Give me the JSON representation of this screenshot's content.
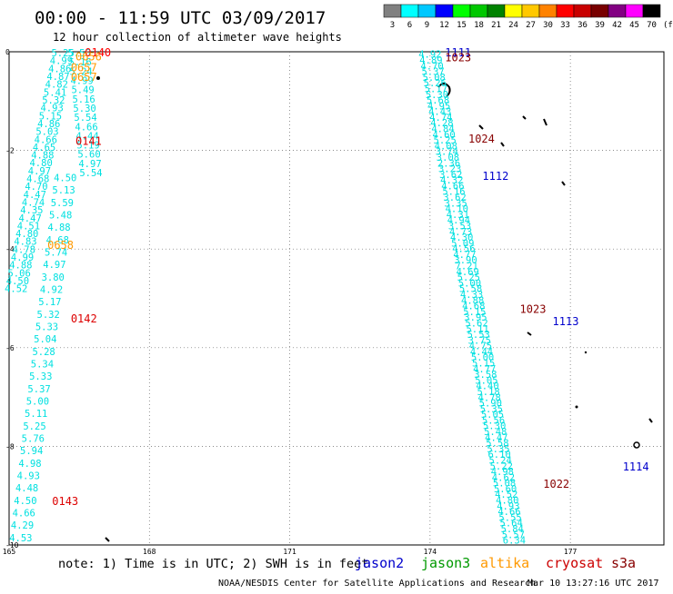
{
  "header": {
    "title": "00:00 - 11:59 UTC 03/09/2017",
    "subtitle": "12 hour collection of altimeter wave heights"
  },
  "colorbar": {
    "unit_label": "(ft)",
    "labels": [
      "3",
      "6",
      "9",
      "12",
      "15",
      "18",
      "21",
      "24",
      "27",
      "30",
      "33",
      "36",
      "39",
      "42",
      "45",
      "70"
    ],
    "colors": [
      "#808080",
      "#00ffff",
      "#00c8ff",
      "#0000ff",
      "#00ff00",
      "#00c800",
      "#008200",
      "#ffff00",
      "#ffc800",
      "#ff8200",
      "#ff0000",
      "#c80000",
      "#780000",
      "#820082",
      "#ff00ff",
      "#000000"
    ]
  },
  "footer": {
    "note": "note: 1) Time is in UTC; 2) SWH is in feet",
    "credit": "NOAA/NESDIS Center for Satellite Applications and Research",
    "generated": "Mar 10 13:27:16 UTC 2017"
  },
  "legend": [
    {
      "name": "jason2",
      "color": "#0000cc"
    },
    {
      "name": "jason3",
      "color": "#009900"
    },
    {
      "name": "altika",
      "color": "#ff9900"
    },
    {
      "name": "cryosat",
      "color": "#cc0000"
    },
    {
      "name": "s3a",
      "color": "#880000"
    }
  ],
  "chart_data": {
    "type": "scatter",
    "xlim": [
      165,
      179
    ],
    "ylim": [
      -10,
      0
    ],
    "x_ticks": [
      165,
      168,
      171,
      174,
      177
    ],
    "x_tick_labels": [
      "165",
      "168",
      "171",
      "174",
      "177"
    ],
    "y_ticks": [
      0,
      -2,
      -4,
      -6,
      -8,
      -10
    ],
    "y_tick_labels": [
      "0",
      "-2",
      "-4",
      "-6",
      "-8",
      "-10"
    ],
    "grid": true,
    "value_color": "#00e0e0",
    "time_labels": [
      {
        "text": "0140",
        "x": 166.9,
        "y": 0.0,
        "color": "#ff0000"
      },
      {
        "text": "0656",
        "x": 166.7,
        "y": -0.08,
        "color": "#ff9900"
      },
      {
        "text": "0657",
        "x": 166.6,
        "y": -0.3,
        "color": "#ff9900"
      },
      {
        "text": "0657",
        "x": 166.6,
        "y": -0.5,
        "color": "#ff9900"
      },
      {
        "text": "0141",
        "x": 166.7,
        "y": -1.8,
        "color": "#dd0000"
      },
      {
        "text": "0658",
        "x": 166.1,
        "y": -3.9,
        "color": "#ff9900"
      },
      {
        "text": "0142",
        "x": 166.6,
        "y": -5.4,
        "color": "#dd0000"
      },
      {
        "text": "0143",
        "x": 166.2,
        "y": -9.1,
        "color": "#dd0000"
      },
      {
        "text": "1111",
        "x": 174.6,
        "y": 0.0,
        "color": "#0000cc"
      },
      {
        "text": "1023",
        "x": 174.6,
        "y": -0.1,
        "color": "#880000"
      },
      {
        "text": "1024",
        "x": 175.1,
        "y": -1.75,
        "color": "#880000"
      },
      {
        "text": "1112",
        "x": 175.4,
        "y": -2.5,
        "color": "#0000cc"
      },
      {
        "text": "1023",
        "x": 176.2,
        "y": -5.2,
        "color": "#880000"
      },
      {
        "text": "1113",
        "x": 176.9,
        "y": -5.45,
        "color": "#0000cc"
      },
      {
        "text": "1114",
        "x": 178.4,
        "y": -8.4,
        "color": "#0000cc"
      },
      {
        "text": "1022",
        "x": 176.7,
        "y": -8.75,
        "color": "#880000"
      }
    ],
    "swh_tracks": [
      {
        "name": "track-a",
        "x_start": 166.15,
        "x_end": 165.15,
        "y_start": -0.02,
        "y_end": -4.8,
        "values": [
          "5.25",
          "4.99",
          "4.86",
          "4.87",
          "4.82",
          "5.41",
          "5.32",
          "4.93",
          "5.15",
          "4.86",
          "5.03",
          "4.66",
          "4.65",
          "4.88",
          "4.80",
          "4.97",
          "4.68",
          "4.70",
          "4.47",
          "4.74",
          "4.35",
          "4.47",
          "4.51",
          "4.80",
          "4.83",
          "4.78",
          "4.99",
          "4.88",
          "5.06",
          "4.50",
          "4.52"
        ]
      },
      {
        "name": "track-b",
        "x_start": 166.5,
        "x_end": 166.75,
        "y_start": -0.02,
        "y_end": -2.45,
        "values": [
          "5.55",
          "5.16",
          "5.24",
          "4.99",
          "5.49",
          "5.16",
          "5.30",
          "5.54",
          "4.66",
          "4.44",
          "5.19",
          "5.60",
          "4.97",
          "5.54"
        ]
      },
      {
        "name": "track-c",
        "x_start": 166.2,
        "x_end": 165.25,
        "y_start": -2.55,
        "y_end": -9.85,
        "values": [
          "4.50",
          "5.13",
          "5.59",
          "5.48",
          "4.88",
          "4.68",
          "5.74",
          "4.97",
          "3.80",
          "4.92",
          "5.17",
          "5.32",
          "5.33",
          "5.04",
          "5.28",
          "5.34",
          "5.33",
          "5.37",
          "5.00",
          "5.11",
          "5.25",
          "5.76",
          "5.94",
          "4.98",
          "4.93",
          "4.48",
          "4.50",
          "4.66",
          "4.29",
          "4.53"
        ]
      },
      {
        "name": "track-d",
        "x_start": 174.0,
        "x_end": 175.8,
        "y_start": -0.05,
        "y_end": -9.9,
        "values": [
          "4.92",
          "4.89",
          "4.70",
          "5.37",
          "5.08",
          "5.26",
          "5.17",
          "5.30",
          "5.68",
          "4.95",
          "4.43",
          "4.74",
          "4.28",
          "4.84",
          "4.60",
          "5.25",
          "4.08",
          "3.74",
          "3.08",
          "2.36",
          "3.23",
          "3.62",
          "4.32",
          "4.66",
          "5.16",
          "3.62",
          "3.35",
          "4.10",
          "4.31",
          "4.94",
          "3.53",
          "4.73",
          "4.30",
          "5.09",
          "4.56",
          "4.77",
          "3.90",
          "7.21",
          "4.69",
          "5.25",
          "5.00",
          "5.58",
          "4.33",
          "4.88",
          "4.68",
          "5.15",
          "3.95",
          "5.62",
          "5.11",
          "5.53",
          "3.75",
          "4.75",
          "4.44",
          "5.00",
          "5.15",
          "4.77",
          "3.58",
          "5.05",
          "4.40",
          "5.18",
          "4.78",
          "5.90",
          "5.35",
          "5.05",
          "5.56",
          "5.30",
          "5.48",
          "4.47",
          "5.58",
          "5.35",
          "6.10",
          "5.24",
          "5.22",
          "4.98",
          "4.62",
          "5.08",
          "5.60",
          "4.52",
          "4.80",
          "4.93",
          "4.66",
          "5.55",
          "5.64",
          "5.84",
          "5.57",
          "6.34"
        ]
      }
    ]
  }
}
